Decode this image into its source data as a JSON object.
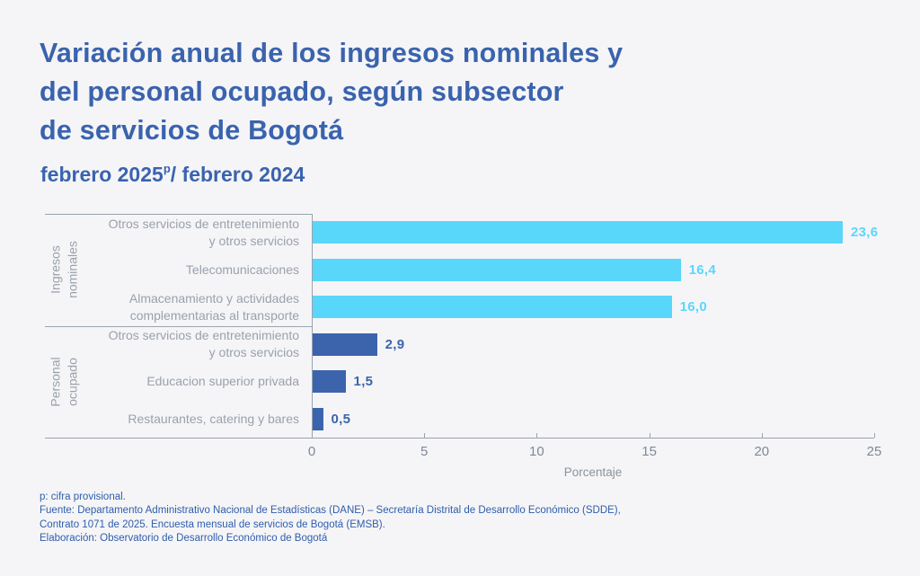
{
  "title": {
    "lines": [
      "Variación anual de los ingresos nominales y",
      "del personal ocupado, según subsector",
      "de servicios de Bogotá"
    ]
  },
  "subtitle": {
    "prefix": "febrero 2025",
    "sup": "p",
    "suffix": "/ febrero 2024"
  },
  "footer": {
    "lines": [
      "p: cifra provisional.",
      "Fuente: Departamento Administrativo Nacional de Estadísticas (DANE) – Secretaría Distrital de Desarrollo Económico (SDDE),",
      "Contrato 1071 de 2025. Encuesta mensual de servicios de Bogotá (EMSB).",
      "Elaboración: Observatorio de Desarrollo Económico de Bogotá"
    ]
  },
  "colors": {
    "background": "#f5f5f7",
    "title_blue": "#3a63ae",
    "footer_blue": "#2f5dab",
    "light_blue_bar": "#59d7fb",
    "dark_blue_bar": "#3c64ad",
    "axis_line": "#9aa3ae",
    "label_gray": "#9aa1ad"
  },
  "chart_data": {
    "type": "bar",
    "orientation": "horizontal",
    "xlabel": "Porcentaje",
    "xlim": [
      0,
      25
    ],
    "xticks": [
      0,
      5,
      10,
      15,
      20,
      25
    ],
    "grid": false,
    "legend": "none",
    "groups": [
      {
        "name": "Ingresos nominales",
        "name_lines": [
          "Ingresos",
          "nominales"
        ],
        "color": "#59d7fb",
        "items": [
          {
            "label_lines": [
              "Otros servicios de entretenimiento",
              "y otros servicios"
            ],
            "value": 23.6,
            "value_label": "23,6"
          },
          {
            "label_lines": [
              "Telecomunicaciones"
            ],
            "value": 16.4,
            "value_label": "16,4"
          },
          {
            "label_lines": [
              "Almacenamiento y actividades",
              "complementarias al transporte"
            ],
            "value": 16.0,
            "value_label": "16,0"
          }
        ]
      },
      {
        "name": "Personal ocupado",
        "name_lines": [
          "Personal",
          "ocupado"
        ],
        "color": "#3c64ad",
        "items": [
          {
            "label_lines": [
              "Otros servicios de entretenimiento",
              "y otros servicios"
            ],
            "value": 2.9,
            "value_label": "2,9"
          },
          {
            "label_lines": [
              "Educacion superior privada"
            ],
            "value": 1.5,
            "value_label": "1,5"
          },
          {
            "label_lines": [
              "Restaurantes, catering y bares"
            ],
            "value": 0.5,
            "value_label": "0,5"
          }
        ]
      }
    ]
  }
}
